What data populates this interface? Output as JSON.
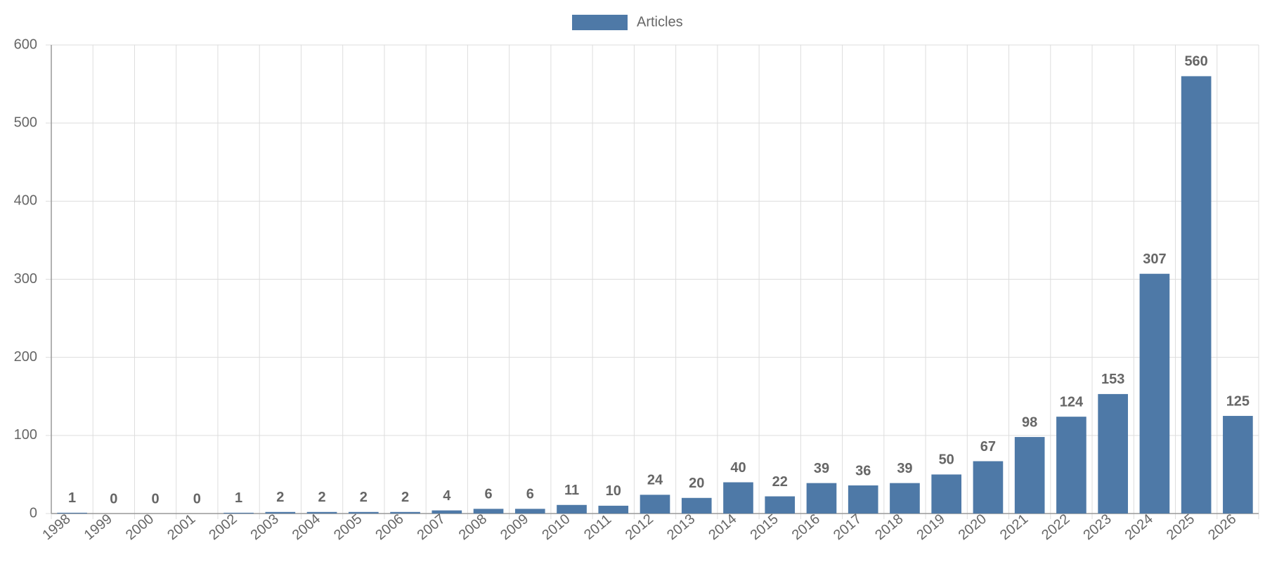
{
  "chart_data": {
    "type": "bar",
    "categories": [
      "1998",
      "1999",
      "2000",
      "2001",
      "2002",
      "2003",
      "2004",
      "2005",
      "2006",
      "2007",
      "2008",
      "2009",
      "2010",
      "2011",
      "2012",
      "2013",
      "2014",
      "2015",
      "2016",
      "2017",
      "2018",
      "2019",
      "2020",
      "2021",
      "2022",
      "2023",
      "2024",
      "2025",
      "2026"
    ],
    "series": [
      {
        "name": "Articles",
        "color": "#4e79a7",
        "values": [
          1,
          0,
          0,
          0,
          1,
          2,
          2,
          2,
          2,
          4,
          6,
          6,
          11,
          10,
          24,
          20,
          40,
          22,
          39,
          36,
          39,
          50,
          67,
          98,
          124,
          153,
          307,
          560,
          125
        ]
      }
    ],
    "ylim": [
      0,
      600
    ],
    "yticks": [
      0,
      100,
      200,
      300,
      400,
      500,
      600
    ],
    "grid": true,
    "legend": "top"
  }
}
